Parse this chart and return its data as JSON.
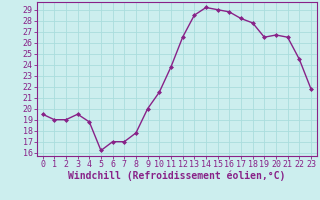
{
  "x": [
    0,
    1,
    2,
    3,
    4,
    5,
    6,
    7,
    8,
    9,
    10,
    11,
    12,
    13,
    14,
    15,
    16,
    17,
    18,
    19,
    20,
    21,
    22,
    23
  ],
  "y": [
    19.5,
    19.0,
    19.0,
    19.5,
    18.8,
    16.2,
    17.0,
    17.0,
    17.8,
    20.0,
    21.5,
    23.8,
    26.5,
    28.5,
    29.2,
    29.0,
    28.8,
    28.2,
    27.8,
    26.5,
    26.7,
    26.5,
    24.5,
    21.8
  ],
  "color": "#882288",
  "bg_color": "#cceeee",
  "grid_color": "#aadddd",
  "xlabel": "Windchill (Refroidissement éolien,°C)",
  "ylim": [
    15.7,
    29.7
  ],
  "yticks": [
    16,
    17,
    18,
    19,
    20,
    21,
    22,
    23,
    24,
    25,
    26,
    27,
    28,
    29
  ],
  "xticks": [
    0,
    1,
    2,
    3,
    4,
    5,
    6,
    7,
    8,
    9,
    10,
    11,
    12,
    13,
    14,
    15,
    16,
    17,
    18,
    19,
    20,
    21,
    22,
    23
  ],
  "marker": "D",
  "markersize": 2.0,
  "linewidth": 1.0,
  "xlabel_fontsize": 7,
  "tick_fontsize": 6
}
